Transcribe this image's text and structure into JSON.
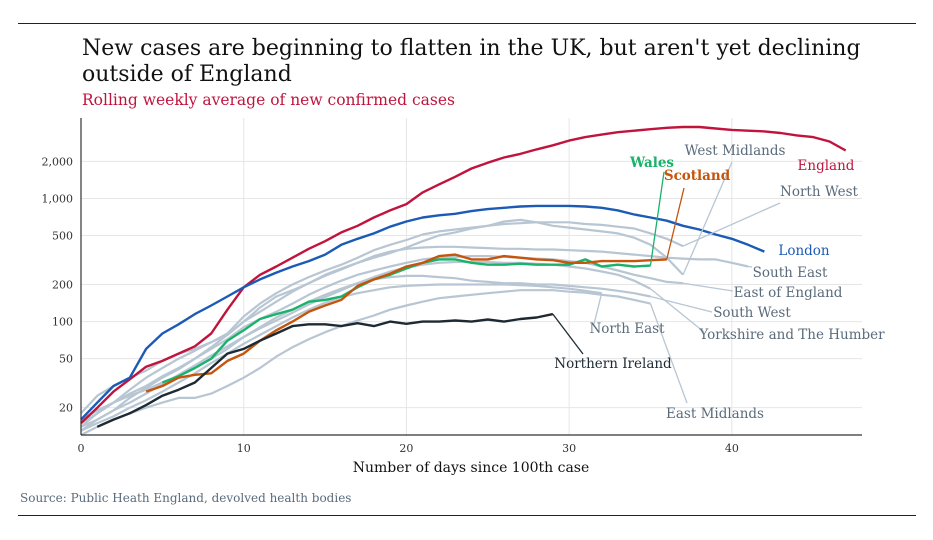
{
  "title": "New cases are beginning to flatten in the UK, but aren't yet declining outside of England",
  "subtitle": "Rolling weekly average of new confirmed cases",
  "source": "Source: Public Heath England, devolved health bodies",
  "chart_data": {
    "type": "line",
    "title": "New cases are beginning to flatten in the UK, but aren't yet declining outside of England",
    "subtitle": "Rolling weekly average of new confirmed cases",
    "xlabel": "Number of days since 100th case",
    "ylabel": "",
    "y_scale": "log",
    "xlim": [
      0,
      48
    ],
    "ylim": [
      12,
      4500
    ],
    "x_ticks": [
      0,
      10,
      20,
      30,
      40
    ],
    "y_ticks": [
      20,
      50,
      100,
      200,
      500,
      1000,
      2000
    ],
    "y_tick_labels": [
      "20",
      "50",
      "100",
      "200",
      "500",
      "1,000",
      "2,000"
    ],
    "grid": true,
    "legend": "direct labels at line ends",
    "colors": {
      "england": "#c0143c",
      "london": "#1c5bb5",
      "wales": "#19b26b",
      "scotland": "#c5540c",
      "northern_ireland": "#1e2a33",
      "grey_regions": "#b8c6d3",
      "grey_label": "#5a6b7b"
    },
    "series": [
      {
        "name": "England",
        "color": "#c0143c",
        "x": [
          0,
          1,
          2,
          3,
          4,
          5,
          6,
          7,
          8,
          9,
          10,
          11,
          12,
          13,
          14,
          15,
          16,
          17,
          18,
          19,
          20,
          21,
          22,
          23,
          24,
          25,
          26,
          27,
          28,
          29,
          30,
          31,
          32,
          33,
          34,
          35,
          36,
          37,
          38,
          39,
          40,
          41,
          42,
          43,
          44,
          45,
          46,
          47
        ],
        "values": [
          15,
          20,
          27,
          34,
          43,
          48,
          55,
          63,
          80,
          125,
          190,
          240,
          280,
          330,
          390,
          450,
          530,
          600,
          700,
          800,
          900,
          1120,
          1300,
          1500,
          1750,
          1950,
          2150,
          2300,
          2500,
          2700,
          2950,
          3150,
          3300,
          3450,
          3550,
          3650,
          3750,
          3800,
          3800,
          3700,
          3600,
          3550,
          3500,
          3400,
          3250,
          3150,
          2900,
          2450
        ]
      },
      {
        "name": "London",
        "color": "#1c5bb5",
        "x": [
          0,
          1,
          2,
          3,
          4,
          5,
          6,
          7,
          8,
          9,
          10,
          11,
          12,
          13,
          14,
          15,
          16,
          17,
          18,
          19,
          20,
          21,
          22,
          23,
          24,
          25,
          26,
          27,
          28,
          29,
          30,
          31,
          32,
          33,
          34,
          35,
          36,
          37,
          38,
          39,
          40,
          41,
          42
        ],
        "values": [
          16,
          22,
          30,
          35,
          60,
          80,
          95,
          115,
          135,
          160,
          190,
          220,
          250,
          280,
          310,
          350,
          420,
          470,
          520,
          590,
          650,
          700,
          730,
          750,
          790,
          820,
          840,
          860,
          870,
          870,
          870,
          860,
          840,
          800,
          740,
          700,
          660,
          600,
          560,
          510,
          470,
          420,
          370
        ]
      },
      {
        "name": "Wales",
        "color": "#19b26b",
        "x": [
          5,
          6,
          7,
          8,
          9,
          10,
          11,
          12,
          13,
          14,
          15,
          16,
          17,
          18,
          19,
          20,
          21,
          22,
          23,
          24,
          25,
          26,
          27,
          28,
          29,
          30,
          31,
          32,
          33,
          34,
          35
        ],
        "values": [
          32,
          36,
          42,
          50,
          70,
          85,
          105,
          115,
          125,
          145,
          150,
          160,
          190,
          220,
          240,
          270,
          300,
          320,
          320,
          300,
          290,
          290,
          295,
          290,
          290,
          290,
          320,
          280,
          290,
          280,
          285
        ]
      },
      {
        "name": "Scotland",
        "color": "#c5540c",
        "x": [
          4,
          5,
          6,
          7,
          8,
          9,
          10,
          11,
          12,
          13,
          14,
          15,
          16,
          17,
          18,
          19,
          20,
          21,
          22,
          23,
          24,
          25,
          26,
          27,
          28,
          29,
          30,
          31,
          32,
          33,
          34,
          35,
          36
        ],
        "values": [
          27,
          30,
          35,
          37,
          38,
          48,
          55,
          70,
          85,
          100,
          120,
          135,
          150,
          195,
          220,
          245,
          280,
          300,
          340,
          350,
          320,
          320,
          340,
          330,
          320,
          315,
          300,
          300,
          310,
          310,
          310,
          315,
          320
        ]
      },
      {
        "name": "Northern Ireland",
        "color": "#1e2a33",
        "x": [
          1,
          2,
          3,
          4,
          5,
          6,
          7,
          8,
          9,
          10,
          11,
          12,
          13,
          14,
          15,
          16,
          17,
          18,
          19,
          20,
          21,
          22,
          23,
          24,
          25,
          26,
          27,
          28,
          29
        ],
        "values": [
          14,
          16,
          18,
          21,
          25,
          28,
          32,
          42,
          55,
          60,
          70,
          80,
          92,
          95,
          95,
          92,
          97,
          92,
          100,
          96,
          100,
          100,
          102,
          100,
          104,
          100,
          105,
          108,
          115
        ]
      },
      {
        "name": "West Midlands",
        "color": "#b8c6d3",
        "x": [
          0,
          1,
          2,
          3,
          4,
          5,
          6,
          7,
          8,
          9,
          10,
          11,
          12,
          13,
          14,
          15,
          16,
          17,
          18,
          19,
          20,
          21,
          22,
          23,
          24,
          25,
          26,
          27,
          28,
          29,
          30,
          31,
          32,
          33,
          34,
          35,
          36,
          37
        ],
        "values": [
          18,
          25,
          30,
          35,
          40,
          48,
          55,
          60,
          68,
          78,
          100,
          130,
          160,
          180,
          205,
          240,
          270,
          300,
          330,
          360,
          400,
          450,
          500,
          530,
          570,
          600,
          650,
          670,
          640,
          600,
          580,
          560,
          540,
          520,
          480,
          420,
          330,
          240
        ]
      },
      {
        "name": "North West",
        "color": "#b8c6d3",
        "x": [
          0,
          1,
          2,
          3,
          4,
          5,
          6,
          7,
          8,
          9,
          10,
          11,
          12,
          13,
          14,
          15,
          16,
          17,
          18,
          19,
          20,
          21,
          22,
          23,
          24,
          25,
          26,
          27,
          28,
          29,
          30,
          31,
          32,
          33,
          34,
          35,
          36,
          37
        ],
        "values": [
          14,
          18,
          22,
          28,
          35,
          42,
          50,
          58,
          68,
          80,
          110,
          140,
          170,
          200,
          230,
          260,
          290,
          330,
          380,
          420,
          460,
          510,
          540,
          560,
          580,
          600,
          620,
          630,
          640,
          640,
          640,
          620,
          610,
          590,
          570,
          520,
          470,
          410
        ]
      },
      {
        "name": "South East",
        "color": "#b8c6d3",
        "x": [
          0,
          1,
          2,
          3,
          4,
          5,
          6,
          7,
          8,
          9,
          10,
          11,
          12,
          13,
          14,
          15,
          16,
          17,
          18,
          19,
          20,
          21,
          22,
          23,
          24,
          25,
          26,
          27,
          28,
          29,
          30,
          31,
          32,
          33,
          34,
          35,
          36,
          37,
          38,
          39,
          40,
          41
        ],
        "values": [
          15,
          18,
          22,
          26,
          30,
          36,
          42,
          50,
          62,
          78,
          100,
          120,
          145,
          175,
          205,
          235,
          265,
          300,
          340,
          370,
          390,
          400,
          405,
          405,
          400,
          395,
          390,
          390,
          385,
          385,
          380,
          375,
          370,
          360,
          350,
          340,
          330,
          325,
          320,
          320,
          300,
          280
        ]
      },
      {
        "name": "East of England",
        "color": "#b8c6d3",
        "x": [
          0,
          1,
          2,
          3,
          4,
          5,
          6,
          7,
          8,
          9,
          10,
          11,
          12,
          13,
          14,
          15,
          16,
          17,
          18,
          19,
          20,
          21,
          22,
          23,
          24,
          25,
          26,
          27,
          28,
          29,
          30,
          31,
          32,
          33,
          34,
          35,
          36,
          37
        ],
        "values": [
          13,
          16,
          19,
          24,
          29,
          35,
          41,
          50,
          60,
          72,
          90,
          105,
          120,
          140,
          165,
          190,
          215,
          240,
          260,
          280,
          300,
          320,
          330,
          335,
          340,
          340,
          335,
          330,
          325,
          320,
          310,
          300,
          280,
          260,
          240,
          225,
          210,
          205
        ]
      },
      {
        "name": "South West",
        "color": "#b8c6d3",
        "x": [
          0,
          1,
          2,
          3,
          4,
          5,
          6,
          7,
          8,
          9,
          10,
          11,
          12,
          13,
          14,
          15,
          16,
          17,
          18,
          19,
          20,
          21,
          22,
          23,
          24,
          25,
          26,
          27,
          28,
          29,
          30,
          31,
          32,
          33,
          34,
          35
        ],
        "values": [
          16,
          19,
          22,
          25,
          28,
          32,
          36,
          42,
          50,
          60,
          75,
          90,
          108,
          125,
          145,
          165,
          185,
          205,
          220,
          230,
          235,
          235,
          230,
          225,
          215,
          210,
          205,
          205,
          200,
          200,
          195,
          190,
          185,
          178,
          170,
          160
        ]
      },
      {
        "name": "Yorkshire and The Humber",
        "color": "#b8c6d3",
        "x": [
          0,
          1,
          2,
          3,
          4,
          5,
          6,
          7,
          8,
          9,
          10,
          11,
          12,
          13,
          14,
          15,
          16,
          17,
          18,
          19,
          20,
          21,
          22,
          23,
          24,
          25,
          26,
          27,
          28,
          29,
          30,
          31,
          32,
          33,
          34,
          35
        ],
        "values": [
          14,
          16,
          19,
          22,
          26,
          31,
          37,
          44,
          53,
          63,
          75,
          88,
          102,
          118,
          138,
          158,
          180,
          205,
          230,
          255,
          275,
          290,
          300,
          305,
          305,
          305,
          300,
          300,
          295,
          290,
          280,
          270,
          255,
          240,
          215,
          185
        ]
      },
      {
        "name": "North East",
        "color": "#b8c6d3",
        "x": [
          0,
          1,
          2,
          3,
          4,
          5,
          6,
          7,
          8,
          9,
          10,
          11,
          12,
          13,
          14,
          15,
          16,
          17,
          18,
          19,
          20,
          21,
          22,
          23,
          24,
          25,
          26,
          27,
          28,
          29,
          30,
          31,
          32
        ],
        "values": [
          13,
          15,
          17,
          20,
          23,
          27,
          32,
          38,
          46,
          55,
          66,
          78,
          92,
          108,
          125,
          142,
          158,
          170,
          180,
          190,
          195,
          198,
          200,
          200,
          200,
          200,
          200,
          198,
          195,
          190,
          185,
          178,
          170
        ]
      },
      {
        "name": "East Midlands",
        "color": "#b8c6d3",
        "x": [
          0,
          1,
          2,
          3,
          4,
          5,
          6,
          7,
          8,
          9,
          10,
          11,
          12,
          13,
          14,
          15,
          16,
          17,
          18,
          19,
          20,
          21,
          22,
          23,
          24,
          25,
          26,
          27,
          28,
          29,
          30,
          31,
          32,
          33,
          34,
          35
        ],
        "values": [
          12,
          14,
          16,
          18,
          20,
          22,
          24,
          24,
          26,
          30,
          35,
          42,
          52,
          62,
          72,
          82,
          92,
          102,
          112,
          125,
          135,
          145,
          155,
          160,
          165,
          170,
          175,
          180,
          180,
          180,
          175,
          172,
          165,
          160,
          150,
          140
        ]
      }
    ],
    "label_style": "direct labels placed beside line ends, grey region labels connected by leader lines"
  }
}
